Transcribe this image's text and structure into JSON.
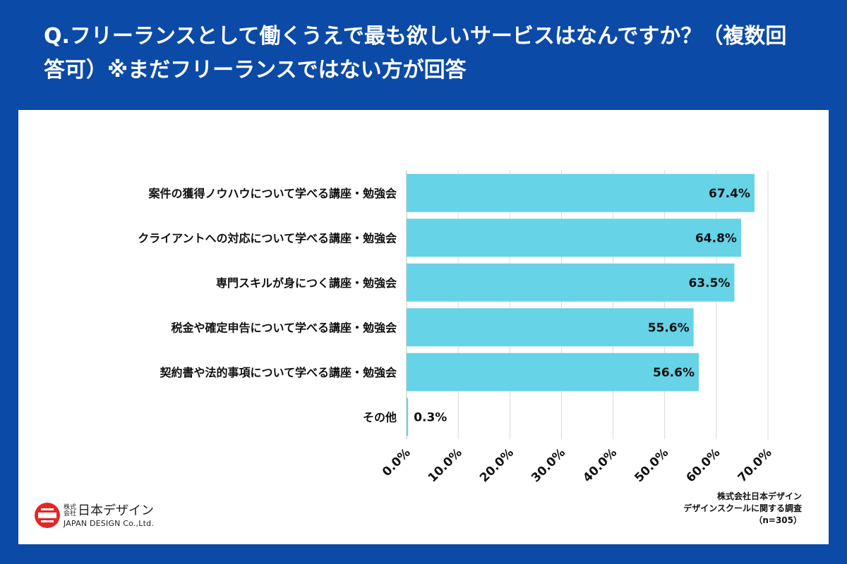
{
  "header": {
    "title": "Q.フリーランスとして働くうえで最も欲しいサービスはなんですか？（複数回答可）※まだフリーランスではない方が回答"
  },
  "colors": {
    "background": "#0b4aa6",
    "bar": "#66d3e6",
    "text": "#111111",
    "grid": "#d9d9d9"
  },
  "chart_data": {
    "type": "bar",
    "orientation": "horizontal",
    "categories": [
      "案件の獲得ノウハウについて学べる講座・勉強会",
      "クライアントへの対応について学べる講座・勉強会",
      "専門スキルが身につく講座・勉強会",
      "税金や確定申告について学べる講座・勉強会",
      "契約書や法的事項について学べる講座・勉強会",
      "その他"
    ],
    "values": [
      67.4,
      64.8,
      63.5,
      55.6,
      56.6,
      0.3
    ],
    "data_labels": [
      "67.4%",
      "64.8%",
      "63.5%",
      "55.6%",
      "56.6%",
      "0.3%"
    ],
    "xlim": [
      0,
      70
    ],
    "ticks": [
      0,
      10,
      20,
      30,
      40,
      50,
      60,
      70
    ],
    "tick_labels": [
      "0.0%",
      "10.0%",
      "20.0%",
      "30.0%",
      "40.0%",
      "50.0%",
      "60.0%",
      "70.0%"
    ],
    "grid": true,
    "xlabel": "",
    "ylabel": ""
  },
  "source": {
    "line1": "株式会社日本デザイン",
    "line2": "デザインスクールに関する調査",
    "line3": "（n=305）"
  },
  "logo": {
    "company_small_1": "株式",
    "company_small_2": "会社",
    "company_name": "日本デザイン",
    "company_en": "JAPAN DESIGN Co.,Ltd.",
    "icon": "japan-design-logo-icon"
  }
}
